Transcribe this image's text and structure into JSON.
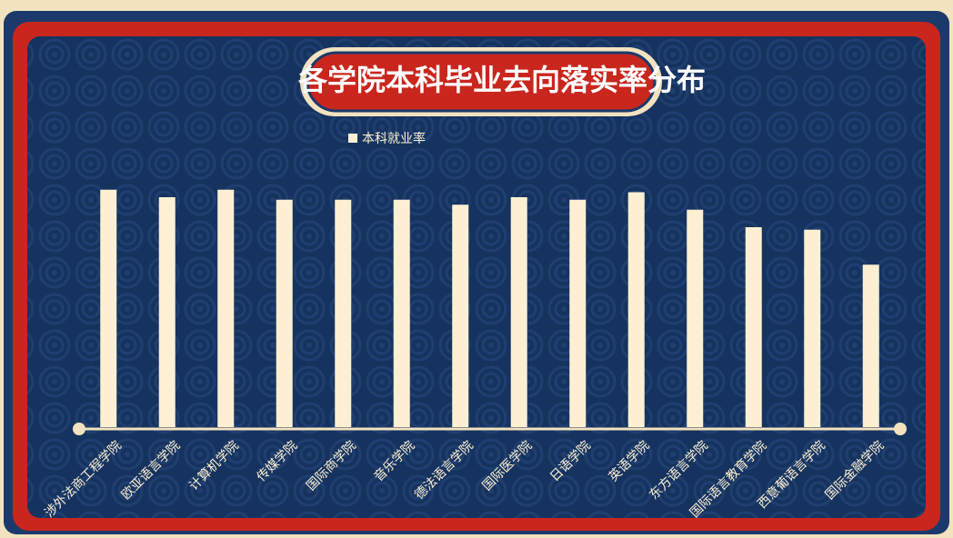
{
  "chart_data": {
    "type": "bar",
    "title": "各学院本科毕业去向落实率分布",
    "legend": "本科就业率",
    "categories": [
      "涉外法商工程学院",
      "欧亚语言学院",
      "计算机学院",
      "传媒学院",
      "国际商学院",
      "音乐学院",
      "德法语言学院",
      "国际医学院",
      "日语学院",
      "英语学院",
      "东方语言学院",
      "国际语言教育学院",
      "西意葡语言学院",
      "国际金融学院"
    ],
    "values": [
      95,
      92,
      95,
      91,
      91,
      91,
      89,
      92,
      91,
      94,
      87,
      80,
      79,
      65
    ],
    "color": "#fdf0d2",
    "ylim": [
      0,
      100
    ]
  }
}
